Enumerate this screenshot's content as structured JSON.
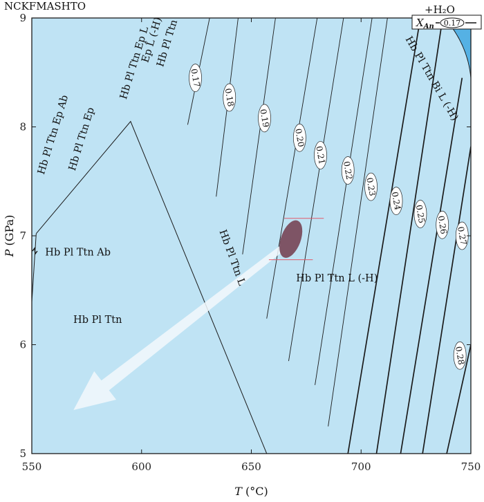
{
  "chart_data": {
    "type": "phase-diagram",
    "title": "NCKFMASHTO",
    "subtitle": "+H₂O",
    "xlabel_var": "T",
    "xlabel_unit": " (°C)",
    "ylabel_var": "P",
    "ylabel_unit": " (GPa)",
    "xlim": [
      550,
      750
    ],
    "ylim": [
      5,
      9
    ],
    "xticks": [
      "550",
      "600",
      "650",
      "700",
      "750"
    ],
    "yticks": [
      "5",
      "6",
      "7",
      "8",
      "9"
    ],
    "colors": {
      "field": "#bfe3f4",
      "corner_field": "#55b1e4",
      "line": "#1a1a1a",
      "ellipse": "#7e5465",
      "arrow": "#f2f8fc",
      "bracket": "#e05a6a"
    },
    "legend": {
      "var": "X",
      "sub": "An",
      "example": "0.17"
    },
    "field_labels": [
      {
        "text": "Hb Pl Ttn Ep Ab",
        "T": 561,
        "P": 7.92,
        "angle": -73
      },
      {
        "text": "Hb Pl Ttn Ep",
        "T": 574,
        "P": 7.88,
        "angle": -73
      },
      {
        "text": "Hb Pl Ttn Ep L",
        "T": 598,
        "P": 8.58,
        "angle": -73
      },
      {
        "text": "Hb Pl Ttn",
        "T": 613,
        "P": 8.76,
        "angle": -73
      },
      {
        "text": "Ep L (-H)",
        "T": 606,
        "P": 8.79,
        "angle": -73
      },
      {
        "text": "Hb Pl Ttn Ab",
        "T": 571,
        "P": 6.82,
        "angle": 0
      },
      {
        "text": "Hb Pl Ttn",
        "T": 580,
        "P": 6.2,
        "angle": 0
      },
      {
        "text": "Hb Pl Ttn L",
        "T": 640,
        "P": 6.79,
        "angle": 70
      },
      {
        "text": "Hb Pl Ttn L (-H)",
        "T": 689,
        "P": 6.58,
        "angle": 0
      },
      {
        "text": "Hb Pl Ttn Bi L (-H)",
        "T": 731,
        "P": 8.43,
        "angle": 60
      }
    ],
    "isopleths": [
      {
        "label": "0.17",
        "T": 624.5,
        "P": 8.45,
        "line": [
          [
            621,
            8.02
          ],
          [
            631,
            9.0
          ]
        ]
      },
      {
        "label": "0.18",
        "T": 640,
        "P": 8.27,
        "line": [
          [
            634,
            7.36
          ],
          [
            644,
            9.0
          ]
        ]
      },
      {
        "label": "0.19",
        "T": 656,
        "P": 8.08,
        "line": [
          [
            646,
            6.83
          ],
          [
            661,
            9.0
          ]
        ]
      },
      {
        "label": "0.20",
        "T": 672,
        "P": 7.9,
        "line": [
          [
            657,
            6.24
          ],
          [
            680,
            9.0
          ]
        ]
      },
      {
        "label": "0.21",
        "T": 681.5,
        "P": 7.74,
        "line": [
          [
            667,
            5.85
          ],
          [
            692,
            9.0
          ]
        ]
      },
      {
        "label": "0.22",
        "T": 694,
        "P": 7.6,
        "line": [
          [
            679,
            5.63
          ],
          [
            705,
            9.0
          ]
        ]
      },
      {
        "label": "0.23",
        "T": 704.5,
        "P": 7.45,
        "line": [
          [
            685,
            5.25
          ],
          [
            712,
            9.0
          ]
        ]
      },
      {
        "label": "0.24",
        "T": 716,
        "P": 7.32,
        "line": [
          [
            694,
            5.0
          ],
          [
            727,
            9.0
          ]
        ]
      },
      {
        "label": "0.25",
        "T": 727,
        "P": 7.2,
        "line": [
          [
            707,
            5.0
          ],
          [
            737,
            8.98
          ]
        ]
      },
      {
        "label": "0.26",
        "T": 737,
        "P": 7.1,
        "line": [
          [
            718,
            5.0
          ],
          [
            746,
            8.45
          ]
        ]
      },
      {
        "label": "0.27",
        "T": 746,
        "P": 7.0,
        "line": [
          [
            728,
            5.0
          ],
          [
            750,
            7.82
          ]
        ]
      },
      {
        "label": "0.28",
        "T": 745,
        "P": 5.9,
        "line": [
          [
            739,
            5.0
          ],
          [
            750,
            6.0
          ]
        ]
      }
    ],
    "reaction_lines": [
      {
        "name": "ep-ab-out",
        "points": [
          [
            552,
            7.02
          ],
          [
            595,
            8.05
          ],
          [
            657,
            5.0
          ]
        ]
      },
      {
        "name": "ab-boundary",
        "points": [
          [
            549,
            6.08
          ],
          [
            552,
            7.02
          ]
        ]
      },
      {
        "name": "biotite-in",
        "points": [
          [
            738,
            9.0
          ],
          [
            750,
            8.45
          ]
        ]
      }
    ],
    "ellipse": {
      "T": 668,
      "P": 6.97,
      "dT": 4.5,
      "dP": 0.18,
      "angle": 20
    },
    "error_bars": [
      {
        "P": 7.16,
        "T_range": [
          665,
          683
        ]
      },
      {
        "P": 6.78,
        "T_range": [
          658,
          678
        ]
      }
    ],
    "arrow": {
      "from": [
        663.5,
        6.88
      ],
      "to": [
        569,
        5.4
      ]
    }
  }
}
